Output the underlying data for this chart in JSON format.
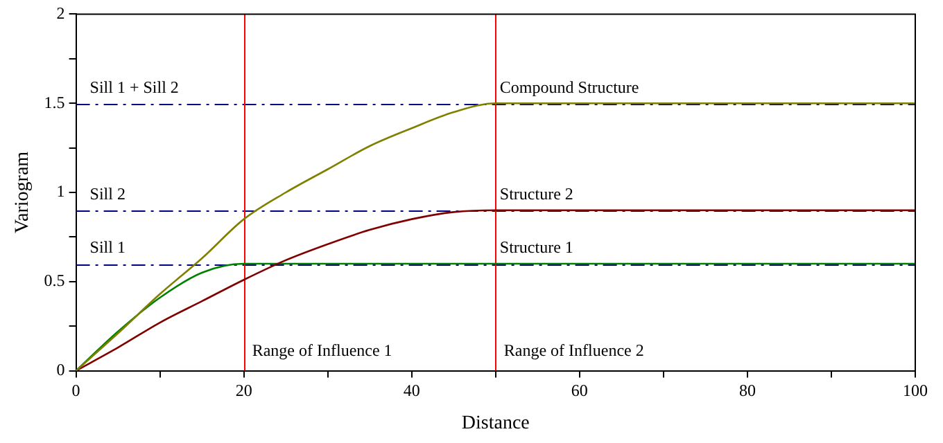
{
  "chart_data": {
    "type": "line",
    "xlabel": "Distance",
    "ylabel": "Variogram",
    "xlim": [
      0,
      100
    ],
    "xticks": [
      0,
      {
        "value": 10,
        "label": null
      },
      20,
      {
        "value": 30,
        "label": null
      },
      40,
      {
        "value": 50,
        "label": null
      },
      60,
      {
        "value": 70,
        "label": null
      },
      80,
      {
        "value": 90,
        "label": null
      },
      100
    ],
    "ylim": [
      0,
      2
    ],
    "yticks": [
      0,
      {
        "value": 0.25,
        "label": null
      },
      0.5,
      {
        "value": 0.75,
        "label": null
      },
      1,
      {
        "value": 1.25,
        "label": null
      },
      1.5,
      {
        "value": 1.75,
        "label": null
      },
      2
    ],
    "grid": false,
    "legend": false,
    "marker": "none",
    "line_style": "solid",
    "x": [
      0,
      5,
      10,
      15,
      20,
      25,
      30,
      35,
      40,
      45,
      50,
      60,
      70,
      80,
      90,
      100
    ],
    "series": [
      {
        "name": "Compound Structure",
        "color": "#808000",
        "values": [
          0,
          0.21,
          0.43,
          0.63,
          0.85,
          1.0,
          1.13,
          1.26,
          1.36,
          1.45,
          1.5,
          1.5,
          1.5,
          1.5,
          1.5,
          1.5
        ]
      },
      {
        "name": "Structure 2",
        "color": "#800000",
        "values": [
          0,
          0.13,
          0.27,
          0.39,
          0.51,
          0.62,
          0.71,
          0.79,
          0.85,
          0.89,
          0.9,
          0.9,
          0.9,
          0.9,
          0.9,
          0.9
        ]
      },
      {
        "name": "Structure 1",
        "color": "#008000",
        "values": [
          0,
          0.22,
          0.41,
          0.55,
          0.6,
          0.6,
          0.6,
          0.6,
          0.6,
          0.6,
          0.6,
          0.6,
          0.6,
          0.6,
          0.6,
          0.6
        ]
      }
    ],
    "ref_lines": [
      {
        "axis": "y",
        "value": 1.5,
        "label": "Sill 1 + Sill 2",
        "color": "#000080",
        "line_style": "dashdot"
      },
      {
        "axis": "y",
        "value": 0.9,
        "label": "Sill 2",
        "color": "#000080",
        "line_style": "dashdot"
      },
      {
        "axis": "y",
        "value": 0.6,
        "label": "Sill 1",
        "color": "#000080",
        "line_style": "dashdot"
      },
      {
        "axis": "x",
        "value": 20,
        "label": "Range of Influence 1",
        "color": "#ff0000",
        "line_style": "solid"
      },
      {
        "axis": "x",
        "value": 50,
        "label": "Range of Influence 2",
        "color": "#ff0000",
        "line_style": "solid"
      }
    ]
  }
}
